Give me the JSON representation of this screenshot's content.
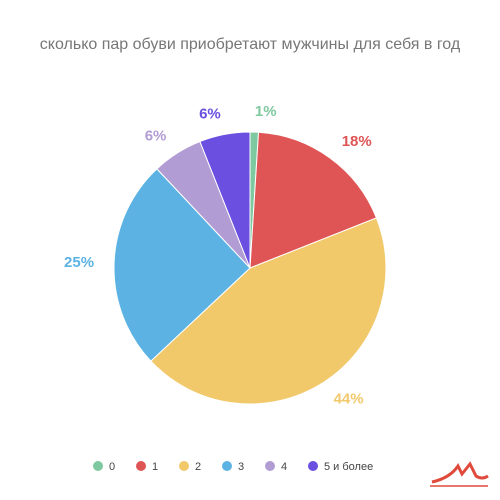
{
  "chart_data": {
    "type": "pie",
    "title": "сколько пар обуви приобретают мужчины для себя в год",
    "categories": [
      "0",
      "1",
      "2",
      "3",
      "4",
      "5 и более"
    ],
    "values": [
      1,
      18,
      44,
      25,
      6,
      6
    ],
    "value_labels": [
      "1%",
      "18%",
      "44%",
      "25%",
      "6%",
      "6%"
    ],
    "colors": [
      "#7fc9a0",
      "#df5555",
      "#f1c96b",
      "#5cb3e3",
      "#b29cd4",
      "#6a4fe0"
    ]
  }
}
